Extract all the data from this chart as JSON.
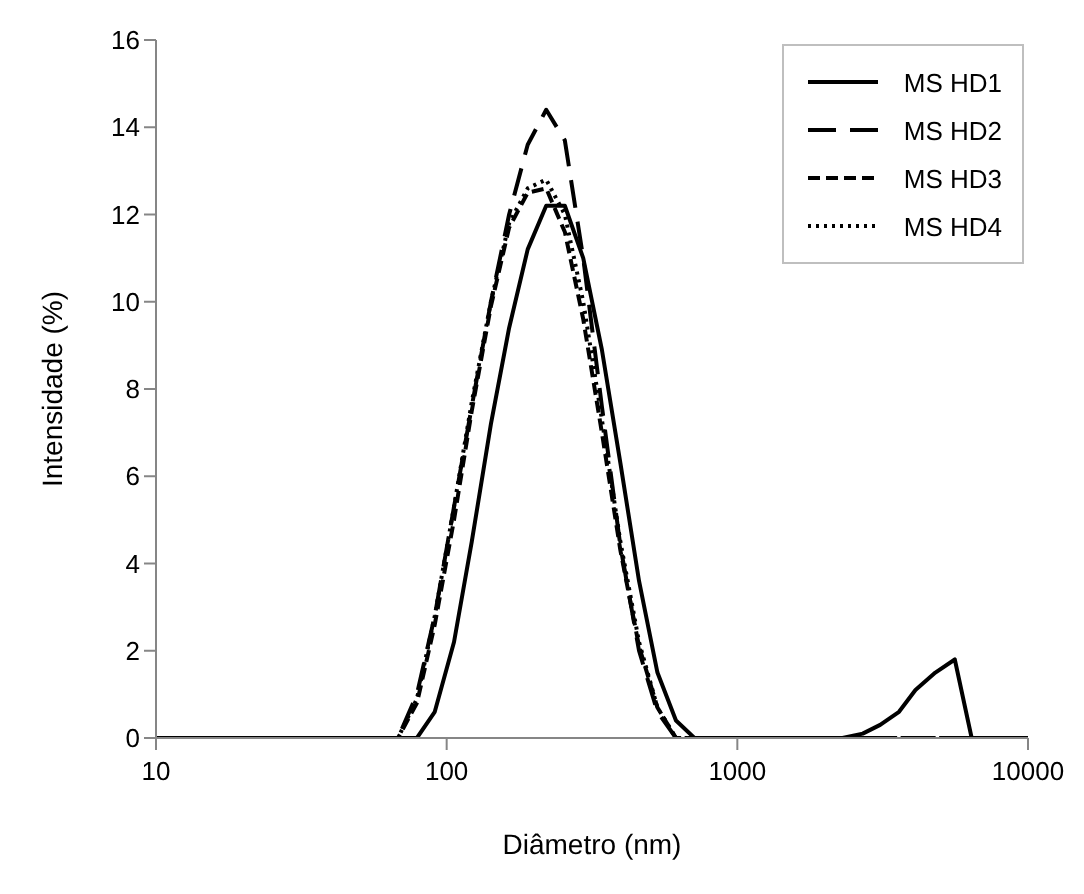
{
  "chart_data": {
    "type": "line",
    "xlabel": "Diâmetro (nm)",
    "ylabel": "Intensidade (%)",
    "log": "x",
    "xlim": [
      10,
      10000
    ],
    "xticks": [
      10,
      100,
      1000,
      10000
    ],
    "ylim": [
      0,
      16
    ],
    "yticks": [
      0,
      2,
      4,
      6,
      8,
      10,
      12,
      14,
      16
    ],
    "grid": false,
    "legend": "top right",
    "marker": "none",
    "series": [
      {
        "name": "MS HD1",
        "color": "#000000",
        "line_style": "solid",
        "x": [
          10,
          68,
          79,
          91,
          106,
          122,
          142,
          164,
          190,
          220,
          255,
          295,
          342,
          396,
          459,
          531,
          615,
          712,
          2300,
          2700,
          3100,
          3600,
          4100,
          4800,
          5600,
          6400,
          10000
        ],
        "values": [
          0,
          0,
          0,
          0.6,
          2.2,
          4.5,
          7.2,
          9.4,
          11.2,
          12.2,
          12.2,
          11.0,
          8.9,
          6.3,
          3.6,
          1.5,
          0.4,
          0,
          0,
          0.1,
          0.3,
          0.6,
          1.1,
          1.5,
          1.8,
          0,
          0
        ]
      },
      {
        "name": "MS HD2",
        "color": "#000000",
        "line_style": "long dashed",
        "x": [
          10,
          68,
          79,
          91,
          106,
          122,
          142,
          164,
          190,
          220,
          255,
          295,
          342,
          396,
          459,
          531,
          615,
          10000
        ],
        "values": [
          0,
          0,
          1.0,
          2.8,
          5.3,
          7.6,
          10.0,
          12.0,
          13.6,
          14.4,
          13.7,
          11.0,
          7.6,
          4.4,
          2.0,
          0.6,
          0,
          0
        ]
      },
      {
        "name": "MS HD3",
        "color": "#000000",
        "line_style": "dashed",
        "x": [
          10,
          68,
          79,
          91,
          106,
          122,
          142,
          164,
          190,
          220,
          255,
          295,
          342,
          396,
          459,
          531,
          615,
          10000
        ],
        "values": [
          0,
          0,
          0.8,
          2.6,
          5.0,
          7.5,
          9.9,
          11.7,
          12.5,
          12.6,
          11.6,
          9.6,
          7.0,
          4.3,
          2.1,
          0.7,
          0,
          0
        ]
      },
      {
        "name": "MS HD4",
        "color": "#000000",
        "line_style": "dotted",
        "x": [
          10,
          68,
          79,
          91,
          106,
          122,
          142,
          164,
          190,
          220,
          255,
          295,
          342,
          396,
          459,
          531,
          615,
          10000
        ],
        "values": [
          0,
          0,
          0.9,
          2.8,
          5.3,
          7.7,
          10.0,
          11.8,
          12.6,
          12.8,
          12.0,
          10.0,
          7.3,
          4.5,
          2.2,
          0.7,
          0,
          0
        ]
      }
    ]
  }
}
